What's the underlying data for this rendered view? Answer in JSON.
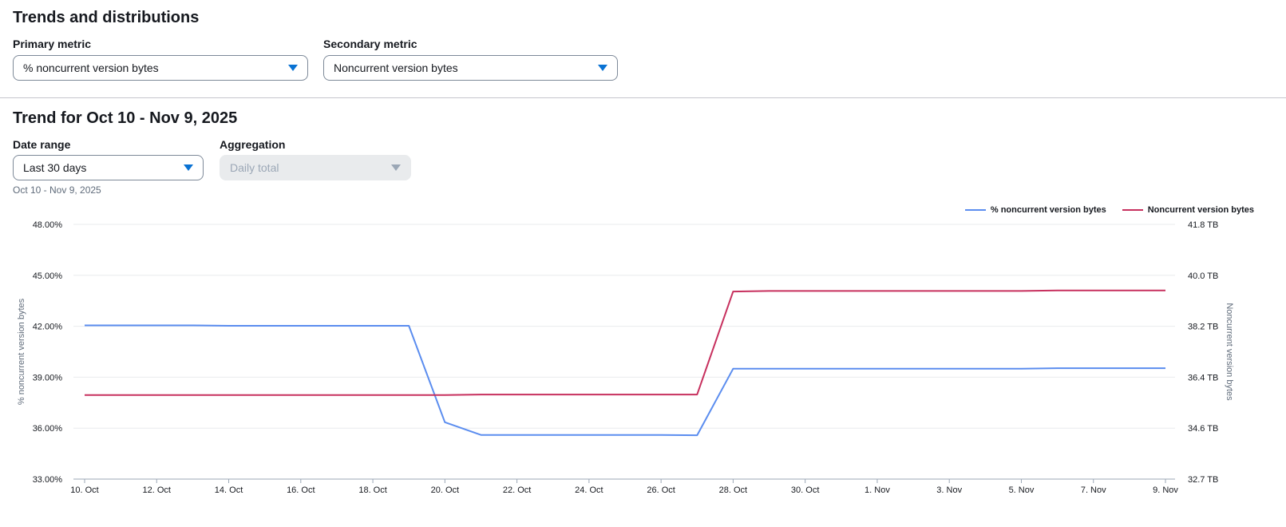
{
  "section1": {
    "title": "Trends and distributions",
    "primary_metric_label": "Primary metric",
    "primary_metric_value": "% noncurrent version bytes",
    "secondary_metric_label": "Secondary metric",
    "secondary_metric_value": "Noncurrent version bytes"
  },
  "section2": {
    "title": "Trend for Oct 10 - Nov 9, 2025",
    "date_range_label": "Date range",
    "date_range_value": "Last 30 days",
    "date_range_desc": "Oct 10 - Nov 9, 2025",
    "aggregation_label": "Aggregation",
    "aggregation_value": "Daily total"
  },
  "colors": {
    "primary": "#5b8def",
    "secondary": "#c7305e",
    "accent": "#0972d3"
  },
  "chart_data": {
    "type": "line",
    "x": [
      "10. Oct",
      "11. Oct",
      "12. Oct",
      "13. Oct",
      "14. Oct",
      "15. Oct",
      "16. Oct",
      "17. Oct",
      "18. Oct",
      "19. Oct",
      "20. Oct",
      "21. Oct",
      "22. Oct",
      "23. Oct",
      "24. Oct",
      "25. Oct",
      "26. Oct",
      "27. Oct",
      "28. Oct",
      "29. Oct",
      "30. Oct",
      "31. Oct",
      "1. Nov",
      "2. Nov",
      "3. Nov",
      "4. Nov",
      "5. Nov",
      "6. Nov",
      "7. Nov",
      "8. Nov",
      "9. Nov"
    ],
    "x_ticks": [
      "10. Oct",
      "12. Oct",
      "14. Oct",
      "16. Oct",
      "18. Oct",
      "20. Oct",
      "22. Oct",
      "24. Oct",
      "26. Oct",
      "28. Oct",
      "30. Oct",
      "1. Nov",
      "3. Nov",
      "5. Nov",
      "7. Nov",
      "9. Nov"
    ],
    "y_left": {
      "label": "% noncurrent version bytes",
      "ticks": [
        "33.00%",
        "36.00%",
        "39.00%",
        "42.00%",
        "45.00%",
        "48.00%"
      ],
      "range": [
        33,
        48
      ]
    },
    "y_right": {
      "label": "Noncurrent version bytes",
      "ticks": [
        "32.7 TB",
        "34.6 TB",
        "36.4 TB",
        "38.2 TB",
        "40.0 TB",
        "41.8 TB"
      ],
      "range": [
        32.7,
        41.8
      ]
    },
    "series": [
      {
        "name": "% noncurrent version bytes",
        "axis": "left",
        "values": [
          42.05,
          42.05,
          42.05,
          42.05,
          42.03,
          42.03,
          42.03,
          42.03,
          42.03,
          42.03,
          36.35,
          35.6,
          35.6,
          35.6,
          35.6,
          35.6,
          35.6,
          35.58,
          39.5,
          39.5,
          39.5,
          39.5,
          39.5,
          39.5,
          39.5,
          39.5,
          39.5,
          39.53,
          39.53,
          39.53,
          39.53
        ]
      },
      {
        "name": "Noncurrent version bytes",
        "axis": "right",
        "values": [
          35.7,
          35.7,
          35.7,
          35.7,
          35.7,
          35.7,
          35.7,
          35.7,
          35.7,
          35.7,
          35.7,
          35.72,
          35.72,
          35.72,
          35.72,
          35.72,
          35.72,
          35.72,
          39.4,
          39.42,
          39.42,
          39.42,
          39.42,
          39.42,
          39.42,
          39.42,
          39.42,
          39.44,
          39.44,
          39.44,
          39.44
        ]
      }
    ],
    "legend_position": "top-right",
    "grid": true
  }
}
